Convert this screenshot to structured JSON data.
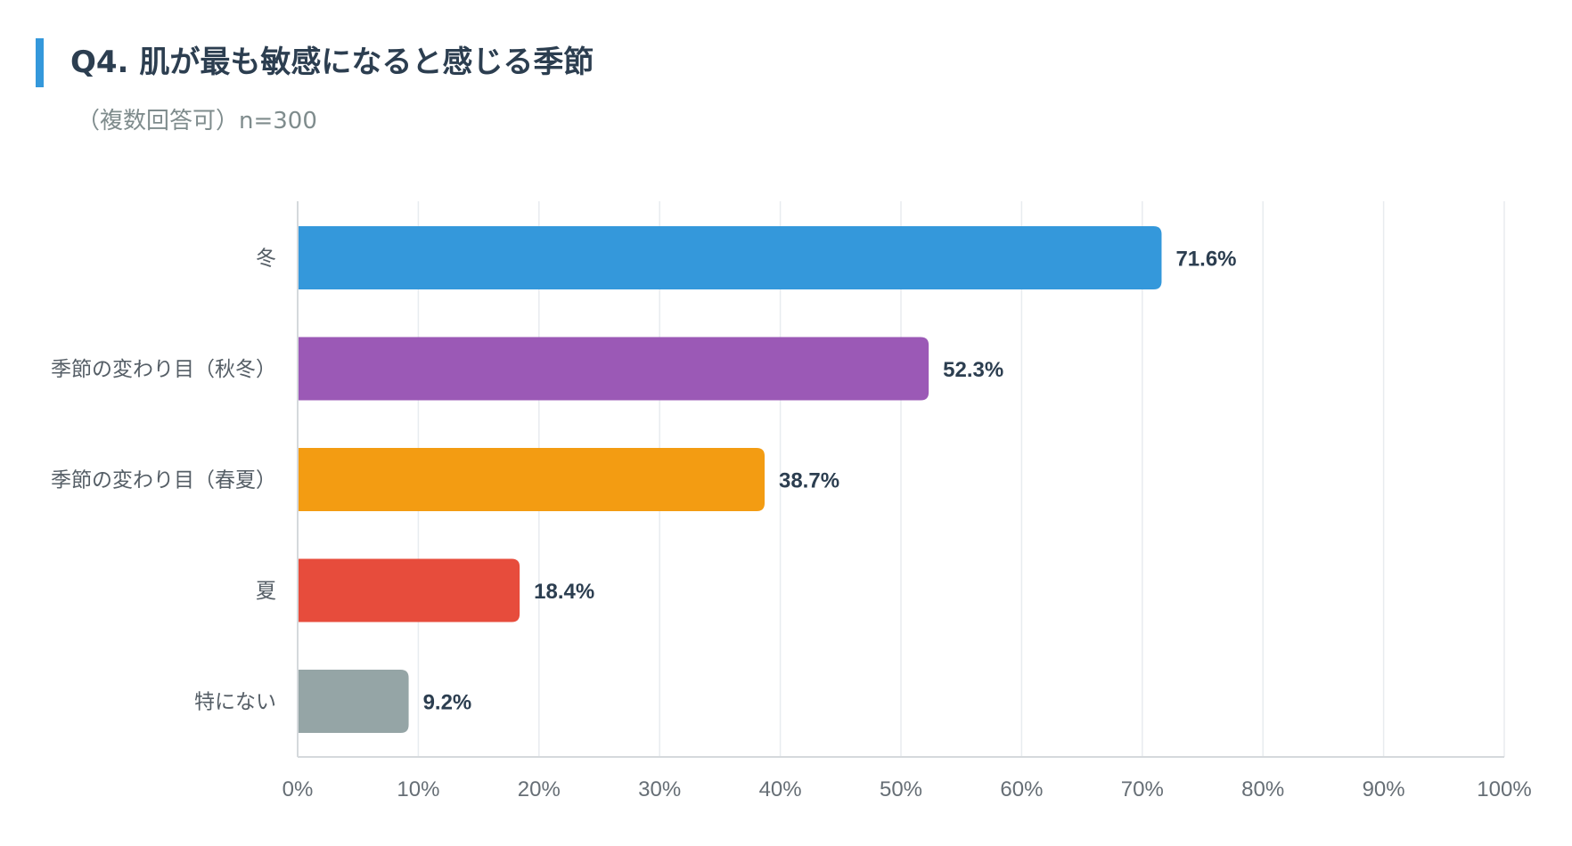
{
  "header": {
    "title": "Q4. 肌が最も敏感になると感じる季節",
    "subtitle": "（複数回答可）n=300"
  },
  "chart_data": {
    "type": "bar",
    "orientation": "horizontal",
    "categories": [
      "冬",
      "季節の変わり目（秋冬）",
      "季節の変わり目（春夏）",
      "夏",
      "特にない"
    ],
    "values": [
      71.6,
      52.3,
      38.7,
      18.4,
      9.2
    ],
    "value_labels": [
      "71.6%",
      "52.3%",
      "38.7%",
      "18.4%",
      "9.2%"
    ],
    "colors": [
      "#3498db",
      "#9b59b6",
      "#f39c12",
      "#e74c3c",
      "#95a5a6"
    ],
    "xlim": [
      0,
      100
    ],
    "xticks": [
      0,
      10,
      20,
      30,
      40,
      50,
      60,
      70,
      80,
      90,
      100
    ],
    "xtick_labels": [
      "0%",
      "10%",
      "20%",
      "30%",
      "40%",
      "50%",
      "60%",
      "70%",
      "80%",
      "90%",
      "100%"
    ],
    "grid": true,
    "legend": "none"
  }
}
